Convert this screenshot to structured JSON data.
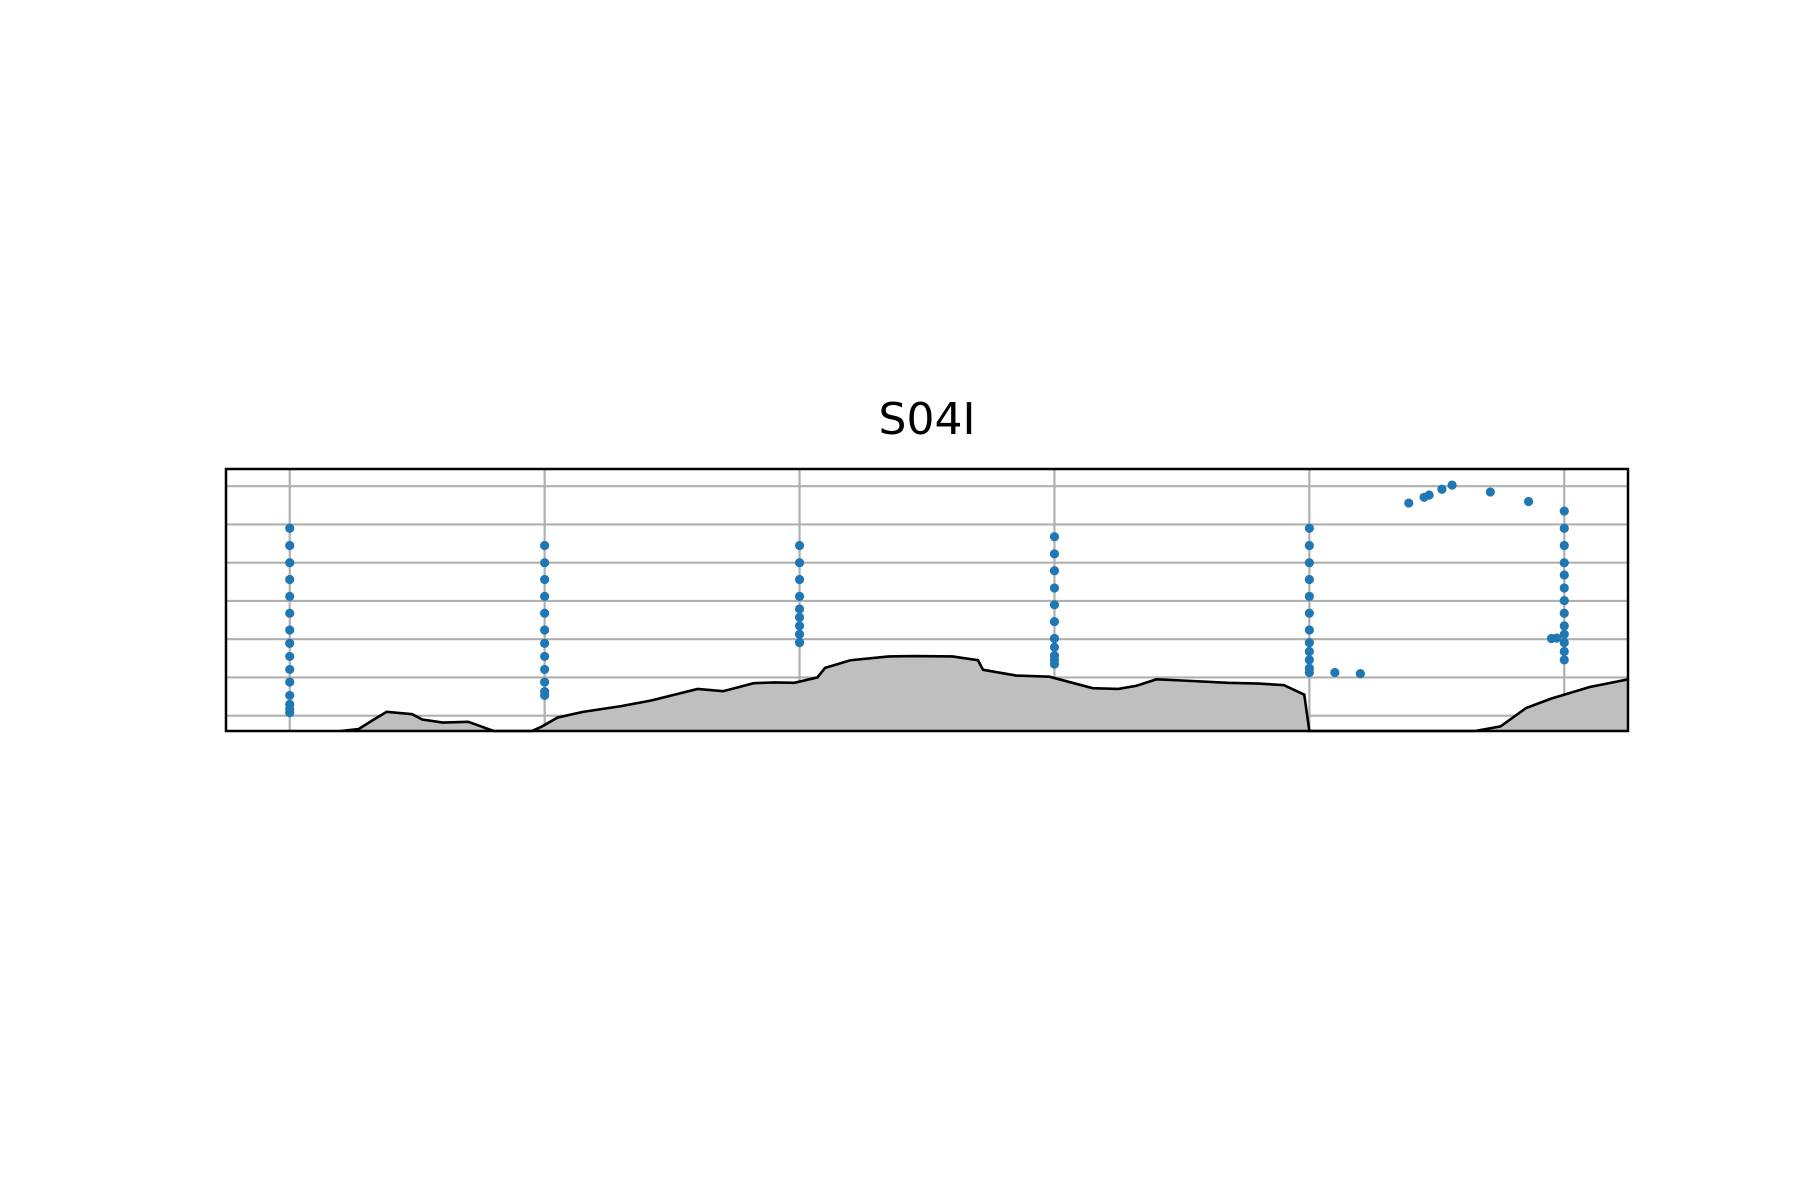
{
  "chart_data": {
    "type": "scatter",
    "title": "S04I",
    "xlabel": "",
    "ylabel": "",
    "grid": true,
    "axes_ticks_visible": false,
    "x_gridlines": [
      1,
      2,
      3,
      4,
      5,
      6
    ],
    "y_gridlines": [
      1,
      2,
      3,
      4,
      5,
      6,
      7
    ],
    "xlim": [
      0.75,
      6.25
    ],
    "ylim": [
      0.6,
      7.45
    ],
    "point_color": "#1f77b4",
    "bathymetry_fill": "#bfbfbf",
    "bathymetry_line": "#000000",
    "series": [
      {
        "values": [
          {
            "x": 1,
            "y": 5.9
          },
          {
            "x": 1,
            "y": 5.45
          },
          {
            "x": 1,
            "y": 5.0
          },
          {
            "x": 1,
            "y": 4.56
          },
          {
            "x": 1,
            "y": 4.12
          },
          {
            "x": 1,
            "y": 3.68
          },
          {
            "x": 1,
            "y": 3.24
          },
          {
            "x": 1,
            "y": 2.89
          },
          {
            "x": 1,
            "y": 2.55
          },
          {
            "x": 1,
            "y": 2.21
          },
          {
            "x": 1,
            "y": 1.88
          },
          {
            "x": 1,
            "y": 1.53
          },
          {
            "x": 1,
            "y": 1.3
          },
          {
            "x": 1,
            "y": 1.18
          },
          {
            "x": 1,
            "y": 1.08
          },
          {
            "x": 2,
            "y": 5.45
          },
          {
            "x": 2,
            "y": 5.0
          },
          {
            "x": 2,
            "y": 4.56
          },
          {
            "x": 2,
            "y": 4.12
          },
          {
            "x": 2,
            "y": 3.68
          },
          {
            "x": 2,
            "y": 3.24
          },
          {
            "x": 2,
            "y": 2.89
          },
          {
            "x": 2,
            "y": 2.55
          },
          {
            "x": 2,
            "y": 2.21
          },
          {
            "x": 2,
            "y": 1.88
          },
          {
            "x": 2,
            "y": 1.63
          },
          {
            "x": 2,
            "y": 1.53
          },
          {
            "x": 3,
            "y": 5.45
          },
          {
            "x": 3,
            "y": 5.0
          },
          {
            "x": 3,
            "y": 4.56
          },
          {
            "x": 3,
            "y": 4.12
          },
          {
            "x": 3,
            "y": 3.79
          },
          {
            "x": 3,
            "y": 3.57
          },
          {
            "x": 3,
            "y": 3.35
          },
          {
            "x": 3,
            "y": 3.13
          },
          {
            "x": 3,
            "y": 2.91
          },
          {
            "x": 4,
            "y": 5.68
          },
          {
            "x": 4,
            "y": 5.23
          },
          {
            "x": 4,
            "y": 4.79
          },
          {
            "x": 4,
            "y": 4.34
          },
          {
            "x": 4,
            "y": 3.9
          },
          {
            "x": 4,
            "y": 3.46
          },
          {
            "x": 4,
            "y": 3.02
          },
          {
            "x": 4,
            "y": 2.79
          },
          {
            "x": 4,
            "y": 2.57
          },
          {
            "x": 4,
            "y": 2.46
          },
          {
            "x": 4,
            "y": 2.35
          },
          {
            "x": 5,
            "y": 5.9
          },
          {
            "x": 5,
            "y": 5.45
          },
          {
            "x": 5,
            "y": 5.0
          },
          {
            "x": 5,
            "y": 4.56
          },
          {
            "x": 5,
            "y": 4.12
          },
          {
            "x": 5,
            "y": 3.68
          },
          {
            "x": 5,
            "y": 3.24
          },
          {
            "x": 5,
            "y": 2.91
          },
          {
            "x": 5,
            "y": 2.68
          },
          {
            "x": 5,
            "y": 2.46
          },
          {
            "x": 5,
            "y": 2.24
          },
          {
            "x": 5,
            "y": 2.13
          },
          {
            "x": 5.1,
            "y": 2.13
          },
          {
            "x": 5.2,
            "y": 2.1
          },
          {
            "x": 5.39,
            "y": 6.56
          },
          {
            "x": 5.45,
            "y": 6.71
          },
          {
            "x": 5.47,
            "y": 6.77
          },
          {
            "x": 5.52,
            "y": 6.92
          },
          {
            "x": 5.56,
            "y": 7.03
          },
          {
            "x": 5.71,
            "y": 6.85
          },
          {
            "x": 5.86,
            "y": 6.6
          },
          {
            "x": 6,
            "y": 6.35
          },
          {
            "x": 6,
            "y": 5.9
          },
          {
            "x": 6,
            "y": 5.45
          },
          {
            "x": 6,
            "y": 5.0
          },
          {
            "x": 6,
            "y": 4.68
          },
          {
            "x": 6,
            "y": 4.34
          },
          {
            "x": 6,
            "y": 4.01
          },
          {
            "x": 6,
            "y": 3.68
          },
          {
            "x": 6,
            "y": 3.35
          },
          {
            "x": 6,
            "y": 3.13
          },
          {
            "x": 6,
            "y": 2.91
          },
          {
            "x": 6,
            "y": 2.68
          },
          {
            "x": 6,
            "y": 2.46
          },
          {
            "x": 5.95,
            "y": 3.02
          },
          {
            "x": 5.97,
            "y": 3.03
          }
        ]
      }
    ],
    "bathymetry_profile": [
      [
        1.2,
        0.6
      ],
      [
        1.27,
        0.65
      ],
      [
        1.33,
        0.9
      ],
      [
        1.38,
        1.1
      ],
      [
        1.48,
        1.04
      ],
      [
        1.52,
        0.9
      ],
      [
        1.6,
        0.82
      ],
      [
        1.7,
        0.84
      ],
      [
        1.8,
        0.6
      ],
      [
        1.95,
        0.6
      ],
      [
        1.99,
        0.72
      ],
      [
        2.05,
        0.95
      ],
      [
        2.15,
        1.1
      ],
      [
        2.3,
        1.25
      ],
      [
        2.42,
        1.4
      ],
      [
        2.6,
        1.7
      ],
      [
        2.7,
        1.64
      ],
      [
        2.82,
        1.85
      ],
      [
        2.9,
        1.87
      ],
      [
        2.98,
        1.86
      ],
      [
        3.07,
        2.0
      ],
      [
        3.1,
        2.25
      ],
      [
        3.2,
        2.45
      ],
      [
        3.35,
        2.55
      ],
      [
        3.45,
        2.56
      ],
      [
        3.6,
        2.55
      ],
      [
        3.7,
        2.45
      ],
      [
        3.72,
        2.2
      ],
      [
        3.85,
        2.05
      ],
      [
        3.98,
        2.02
      ],
      [
        4.15,
        1.72
      ],
      [
        4.25,
        1.7
      ],
      [
        4.32,
        1.78
      ],
      [
        4.4,
        1.95
      ],
      [
        4.5,
        1.92
      ],
      [
        4.68,
        1.86
      ],
      [
        4.8,
        1.84
      ],
      [
        4.9,
        1.8
      ],
      [
        4.98,
        1.55
      ],
      [
        5.0,
        0.6
      ],
      [
        5.65,
        0.6
      ],
      [
        5.75,
        0.72
      ],
      [
        5.85,
        1.2
      ],
      [
        5.95,
        1.45
      ],
      [
        6.1,
        1.75
      ],
      [
        6.25,
        1.95
      ]
    ]
  }
}
